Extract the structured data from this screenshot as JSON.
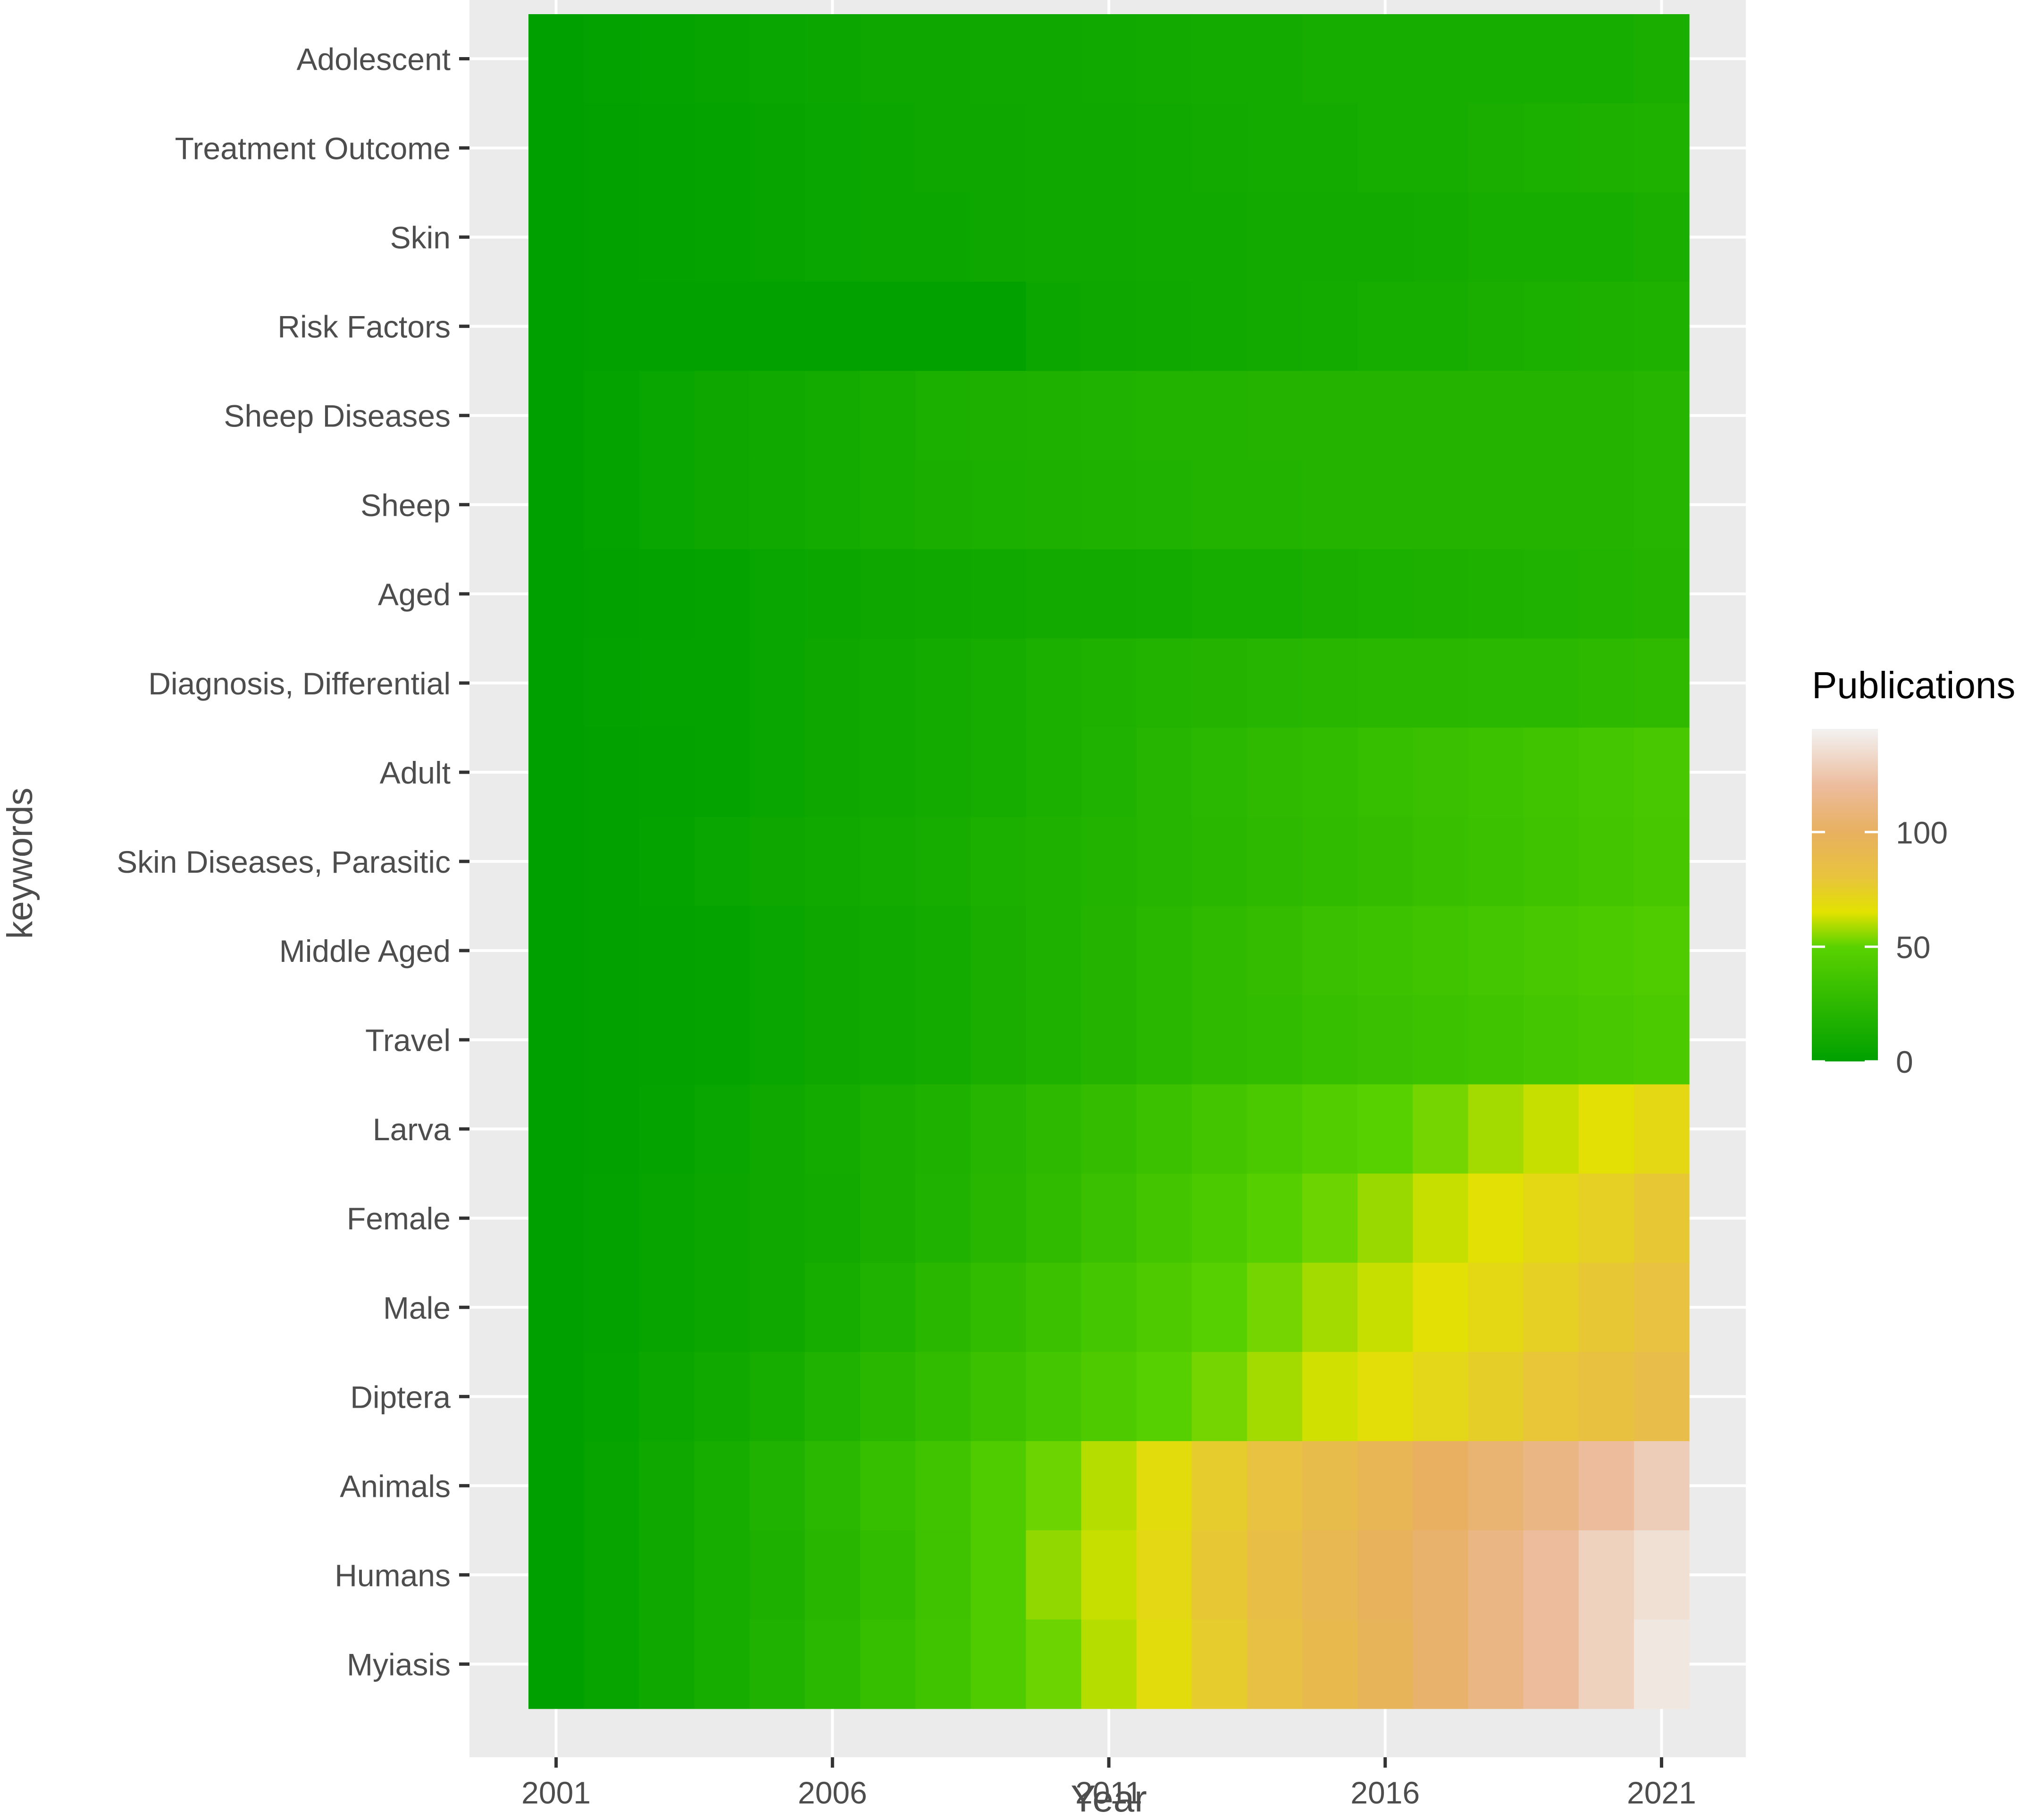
{
  "chart_data": {
    "type": "heatmap",
    "title": "",
    "xlabel": "Year",
    "ylabel": "keywords",
    "x": [
      2001,
      2002,
      2003,
      2004,
      2005,
      2006,
      2007,
      2008,
      2009,
      2010,
      2011,
      2012,
      2013,
      2014,
      2015,
      2016,
      2017,
      2018,
      2019,
      2020,
      2021
    ],
    "x_ticks": [
      2001,
      2006,
      2011,
      2016,
      2021
    ],
    "xlim": [
      2000,
      2022
    ],
    "y_categories": [
      "Adolescent",
      "Treatment Outcome",
      "Skin",
      "Risk Factors",
      "Sheep Diseases",
      "Sheep",
      "Aged",
      "Diagnosis, Differential",
      "Adult",
      "Skin Diseases, Parasitic",
      "Middle Aged",
      "Travel",
      "Larva",
      "Female",
      "Male",
      "Diptera",
      "Animals",
      "Humans",
      "Myiasis"
    ],
    "series": [
      {
        "name": "Adolescent",
        "values": [
          0,
          2,
          3,
          4,
          5,
          6,
          7,
          7,
          8,
          8,
          9,
          10,
          11,
          11,
          12,
          12,
          12,
          12,
          13,
          13,
          14
        ]
      },
      {
        "name": "Treatment Outcome",
        "values": [
          0,
          1,
          2,
          3,
          4,
          5,
          6,
          7,
          7,
          8,
          8,
          9,
          10,
          11,
          11,
          12,
          13,
          14,
          15,
          16,
          17
        ]
      },
      {
        "name": "Skin",
        "values": [
          0,
          1,
          2,
          3,
          4,
          5,
          6,
          6,
          7,
          8,
          8,
          9,
          9,
          10,
          10,
          10,
          11,
          12,
          12,
          13,
          14
        ]
      },
      {
        "name": "Risk Factors",
        "values": [
          0,
          1,
          1,
          1,
          1,
          1,
          1,
          1,
          1,
          6,
          7,
          8,
          9,
          10,
          11,
          12,
          13,
          14,
          15,
          16,
          17
        ]
      },
      {
        "name": "Sheep Diseases",
        "values": [
          0,
          3,
          5,
          7,
          9,
          11,
          13,
          15,
          16,
          17,
          18,
          19,
          19,
          20,
          20,
          20,
          20,
          20,
          20,
          20,
          21
        ]
      },
      {
        "name": "Sheep",
        "values": [
          0,
          3,
          5,
          7,
          9,
          11,
          13,
          14,
          15,
          16,
          17,
          18,
          19,
          19,
          20,
          20,
          20,
          20,
          20,
          20,
          21
        ]
      },
      {
        "name": "Aged",
        "values": [
          0,
          1,
          2,
          3,
          5,
          6,
          7,
          8,
          9,
          10,
          10,
          11,
          12,
          13,
          14,
          15,
          16,
          17,
          18,
          19,
          20
        ]
      },
      {
        "name": "Diagnosis, Differential",
        "values": [
          0,
          2,
          3,
          3,
          5,
          7,
          9,
          11,
          13,
          15,
          17,
          19,
          20,
          21,
          22,
          23,
          23,
          24,
          24,
          25,
          26
        ]
      },
      {
        "name": "Adult",
        "values": [
          0,
          1,
          2,
          3,
          5,
          7,
          9,
          11,
          13,
          15,
          18,
          21,
          24,
          26,
          28,
          30,
          32,
          34,
          36,
          38,
          40
        ]
      },
      {
        "name": "Skin Diseases, Parasitic",
        "values": [
          0,
          1,
          3,
          5,
          7,
          9,
          11,
          13,
          15,
          17,
          19,
          21,
          23,
          25,
          27,
          29,
          31,
          33,
          35,
          37,
          39
        ]
      },
      {
        "name": "Middle Aged",
        "values": [
          0,
          1,
          2,
          3,
          5,
          7,
          9,
          11,
          14,
          17,
          20,
          23,
          26,
          29,
          32,
          34,
          36,
          38,
          40,
          42,
          44
        ]
      },
      {
        "name": "Travel",
        "values": [
          0,
          1,
          2,
          3,
          5,
          7,
          9,
          11,
          14,
          17,
          20,
          23,
          26,
          28,
          30,
          32,
          34,
          36,
          38,
          40,
          42
        ]
      },
      {
        "name": "Larva",
        "values": [
          0,
          1,
          3,
          5,
          8,
          11,
          14,
          17,
          21,
          25,
          29,
          33,
          37,
          41,
          45,
          49,
          53,
          58,
          62,
          66,
          70
        ]
      },
      {
        "name": "Female",
        "values": [
          0,
          2,
          4,
          6,
          8,
          10,
          14,
          18,
          22,
          27,
          32,
          37,
          42,
          47,
          52,
          57,
          62,
          66,
          70,
          74,
          78
        ]
      },
      {
        "name": "Male",
        "values": [
          0,
          2,
          4,
          6,
          8,
          13,
          18,
          23,
          28,
          33,
          38,
          43,
          48,
          53,
          58,
          62,
          66,
          70,
          74,
          78,
          82
        ]
      },
      {
        "name": "Diptera",
        "values": [
          0,
          3,
          6,
          9,
          13,
          18,
          23,
          28,
          33,
          38,
          43,
          48,
          53,
          58,
          63,
          67,
          71,
          75,
          79,
          83,
          87
        ]
      },
      {
        "name": "Animals",
        "values": [
          0,
          4,
          8,
          13,
          18,
          24,
          30,
          36,
          44,
          52,
          60,
          68,
          76,
          82,
          88,
          94,
          100,
          106,
          112,
          120,
          128
        ]
      },
      {
        "name": "Humans",
        "values": [
          0,
          4,
          8,
          12,
          16,
          22,
          28,
          35,
          44,
          56,
          62,
          70,
          78,
          86,
          92,
          98,
          104,
          112,
          120,
          130,
          136
        ]
      },
      {
        "name": "Myiasis",
        "values": [
          0,
          4,
          8,
          13,
          18,
          24,
          30,
          36,
          44,
          52,
          60,
          68,
          76,
          84,
          90,
          96,
          104,
          112,
          120,
          130,
          140
        ]
      }
    ],
    "colorbar": {
      "title": "Publications",
      "ticks": [
        0,
        50,
        100
      ],
      "range": [
        0,
        145
      ],
      "stops": [
        {
          "value": 0,
          "color": "#00a000"
        },
        {
          "value": 50,
          "color": "#5ad200"
        },
        {
          "value": 65,
          "color": "#e2e200"
        },
        {
          "value": 80,
          "color": "#e8c43c"
        },
        {
          "value": 100,
          "color": "#e8b060"
        },
        {
          "value": 120,
          "color": "#ecbc9c"
        },
        {
          "value": 145,
          "color": "#f2f2f2"
        }
      ]
    },
    "grid": true,
    "legend_placement": "right",
    "panel_background": "#ebebeb",
    "grid_color": "#ffffff"
  }
}
